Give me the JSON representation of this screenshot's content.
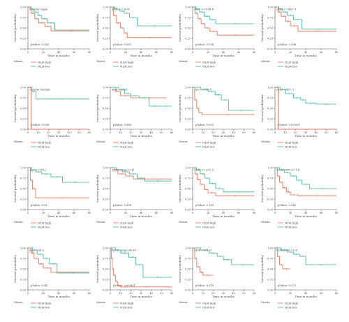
{
  "colors": {
    "high": "#e8664a",
    "low": "#33b39a",
    "axis": "#555555",
    "text": "#444444"
  },
  "shared": {
    "ylabel": "Survival probability",
    "xlabel": "Time in months",
    "yticks": [
      "0.00",
      "0.25",
      "0.50",
      "0.75",
      "1.00"
    ],
    "legend_title": "Strata",
    "legend_high": "NLR-high",
    "legend_low": "NLR-low"
  },
  "chart_data": [
    {
      "type": "line",
      "title": "Gender male",
      "pvalue": "pValue: 0.043",
      "xlim": [
        0,
        80
      ],
      "xticks": [
        0,
        20,
        40,
        60,
        80
      ],
      "ylim": [
        0,
        1
      ],
      "series": [
        {
          "name": "NLR-high",
          "x": [
            0,
            4,
            9,
            14,
            22,
            30,
            80
          ],
          "y": [
            1,
            0.85,
            0.72,
            0.62,
            0.54,
            0.43,
            0.43
          ]
        },
        {
          "name": "NLR-low",
          "x": [
            0,
            3,
            8,
            13,
            18,
            25,
            35,
            80
          ],
          "y": [
            1,
            0.95,
            0.88,
            0.8,
            0.72,
            0.62,
            0.45,
            0.45
          ]
        }
      ]
    },
    {
      "type": "line",
      "title": "BMI <=20.8",
      "pvalue": "pValue: 0.007",
      "xlim": [
        0,
        80
      ],
      "xticks": [
        0,
        20,
        40,
        60,
        80
      ],
      "ylim": [
        0,
        1
      ],
      "series": [
        {
          "name": "NLR-high",
          "x": [
            0,
            4,
            8,
            13,
            18,
            22,
            80
          ],
          "y": [
            1,
            0.8,
            0.62,
            0.5,
            0.38,
            0.27,
            0.27
          ]
        },
        {
          "name": "NLR-low",
          "x": [
            0,
            6,
            12,
            18,
            25,
            35,
            80
          ],
          "y": [
            1,
            0.95,
            0.9,
            0.85,
            0.75,
            0.55,
            0.55
          ]
        }
      ]
    },
    {
      "type": "line",
      "title": "CD3 <=598.8",
      "pvalue": "pValue: 0.078",
      "xlim": [
        0,
        80
      ],
      "xticks": [
        0,
        20,
        40,
        60,
        80
      ],
      "ylim": [
        0,
        1
      ],
      "series": [
        {
          "name": "NLR-high",
          "x": [
            0,
            3,
            7,
            11,
            16,
            22,
            32,
            80
          ],
          "y": [
            1,
            0.85,
            0.72,
            0.6,
            0.5,
            0.42,
            0.33,
            0.33
          ]
        },
        {
          "name": "NLR-low",
          "x": [
            0,
            4,
            9,
            15,
            22,
            30,
            80
          ],
          "y": [
            1,
            0.95,
            0.88,
            0.78,
            0.7,
            0.6,
            0.6
          ]
        }
      ]
    },
    {
      "type": "line",
      "title": "CD8 <=467.3",
      "pvalue": "pValue: 0.196",
      "xlim": [
        0,
        80
      ],
      "xticks": [
        0,
        20,
        40,
        60,
        80
      ],
      "ylim": [
        0,
        1
      ],
      "series": [
        {
          "name": "NLR-high",
          "x": [
            0,
            4,
            8,
            14,
            20,
            30,
            80
          ],
          "y": [
            1,
            0.88,
            0.78,
            0.66,
            0.55,
            0.42,
            0.42
          ]
        },
        {
          "name": "NLR-low",
          "x": [
            0,
            5,
            10,
            16,
            24,
            35,
            80
          ],
          "y": [
            1,
            0.95,
            0.88,
            0.8,
            0.7,
            0.47,
            0.47
          ]
        }
      ]
    },
    {
      "type": "line",
      "title": "Gender female",
      "pvalue": "pValue: 0.008",
      "xlim": [
        0,
        60
      ],
      "xticks": [
        0,
        10,
        20,
        30,
        40,
        50,
        60
      ],
      "ylim": [
        0,
        1
      ],
      "series": [
        {
          "name": "NLR-high",
          "x": [
            0,
            2,
            3,
            60
          ],
          "y": [
            1,
            1,
            0,
            0
          ]
        },
        {
          "name": "NLR-low",
          "x": [
            0,
            4,
            8,
            60
          ],
          "y": [
            1,
            0.9,
            0.72,
            0.72
          ]
        }
      ]
    },
    {
      "type": "line",
      "title": "BMI >20.8",
      "pvalue": "pValue: 0.885",
      "xlim": [
        0,
        60
      ],
      "xticks": [
        0,
        10,
        20,
        30,
        40,
        50,
        60
      ],
      "ylim": [
        0,
        1
      ],
      "series": [
        {
          "name": "NLR-high",
          "x": [
            0,
            5,
            10,
            20,
            55
          ],
          "y": [
            1,
            0.9,
            0.8,
            0.75,
            0.75
          ]
        },
        {
          "name": "NLR-low",
          "x": [
            0,
            8,
            14,
            20,
            28,
            38,
            50,
            60
          ],
          "y": [
            1,
            0.95,
            0.85,
            0.8,
            0.75,
            0.55,
            0.55,
            0.55
          ]
        }
      ]
    },
    {
      "type": "line",
      "title": "CD3 >598.8",
      "pvalue": "pValue: 0.031",
      "xlim": [
        0,
        60
      ],
      "xticks": [
        0,
        10,
        20,
        30,
        40,
        50,
        60
      ],
      "ylim": [
        0,
        1
      ],
      "series": [
        {
          "name": "NLR-high",
          "x": [
            0,
            2,
            4,
            6,
            9,
            60
          ],
          "y": [
            1,
            0.7,
            0.5,
            0.4,
            0.35,
            0.35
          ]
        },
        {
          "name": "NLR-low",
          "x": [
            0,
            8,
            15,
            22,
            28,
            35,
            60
          ],
          "y": [
            1,
            0.95,
            0.9,
            0.82,
            0.7,
            0.45,
            0.45
          ]
        }
      ]
    },
    {
      "type": "line",
      "title": "CD8 >467.3",
      "pvalue": "pValue: <0.0001",
      "xlim": [
        0,
        60
      ],
      "xticks": [
        0,
        10,
        20,
        30,
        40,
        50,
        60
      ],
      "ylim": [
        0,
        1
      ],
      "series": [
        {
          "name": "NLR-high",
          "x": [
            0,
            2,
            3,
            60
          ],
          "y": [
            1,
            1,
            0,
            0
          ]
        },
        {
          "name": "NLR-low",
          "x": [
            0,
            5,
            10,
            18,
            25,
            30,
            40,
            60
          ],
          "y": [
            1,
            0.95,
            0.85,
            0.75,
            0.7,
            0.62,
            0.6,
            0.6
          ]
        }
      ]
    },
    {
      "type": "line",
      "title": "Age <=58.2",
      "pvalue": "pValue: 0.01",
      "xlim": [
        0,
        80
      ],
      "xticks": [
        0,
        20,
        40,
        60,
        80
      ],
      "ylim": [
        0,
        1
      ],
      "series": [
        {
          "name": "NLR-high",
          "x": [
            0,
            3,
            6,
            10,
            80
          ],
          "y": [
            1,
            0.7,
            0.5,
            0.28,
            0.28
          ]
        },
        {
          "name": "NLR-low",
          "x": [
            0,
            5,
            10,
            18,
            30,
            45,
            80
          ],
          "y": [
            1,
            0.95,
            0.9,
            0.85,
            0.78,
            0.65,
            0.65
          ]
        }
      ]
    },
    {
      "type": "line",
      "title": "AJCC stage 0–II",
      "pvalue": "pValue: 0.499",
      "xlim": [
        0,
        80
      ],
      "xticks": [
        0,
        20,
        40,
        60,
        80
      ],
      "ylim": [
        0,
        1
      ],
      "series": [
        {
          "name": "NLR-high",
          "x": [
            0,
            5,
            10,
            20,
            30,
            80
          ],
          "y": [
            1,
            0.95,
            0.85,
            0.8,
            0.73,
            0.73
          ]
        },
        {
          "name": "NLR-low",
          "x": [
            0,
            8,
            16,
            25,
            35,
            45,
            80
          ],
          "y": [
            1,
            0.95,
            0.9,
            0.85,
            0.75,
            0.68,
            0.68
          ]
        }
      ]
    },
    {
      "type": "line",
      "title": "CD4 <=291.3",
      "pvalue": "pValue: 0.163",
      "xlim": [
        0,
        80
      ],
      "xticks": [
        0,
        20,
        40,
        60,
        80
      ],
      "ylim": [
        0,
        1
      ],
      "series": [
        {
          "name": "NLR-high",
          "x": [
            0,
            3,
            6,
            10,
            15,
            20,
            30,
            80
          ],
          "y": [
            1,
            0.85,
            0.72,
            0.6,
            0.48,
            0.4,
            0.33,
            0.33
          ]
        },
        {
          "name": "NLR-low",
          "x": [
            0,
            5,
            10,
            16,
            22,
            30,
            40,
            80
          ],
          "y": [
            1,
            0.95,
            0.85,
            0.75,
            0.62,
            0.5,
            0.42,
            0.42
          ]
        }
      ]
    },
    {
      "type": "line",
      "title": "CD4/CD8 <=1.6",
      "pvalue": "pValue: 0.042",
      "xlim": [
        0,
        80
      ],
      "xticks": [
        0,
        20,
        40,
        60,
        80
      ],
      "ylim": [
        0,
        1
      ],
      "series": [
        {
          "name": "NLR-high",
          "x": [
            0,
            3,
            6,
            10,
            15,
            20,
            30,
            80
          ],
          "y": [
            1,
            0.8,
            0.65,
            0.52,
            0.42,
            0.35,
            0.33,
            0.33
          ]
        },
        {
          "name": "NLR-low",
          "x": [
            0,
            6,
            12,
            20,
            28,
            35,
            45,
            80
          ],
          "y": [
            1,
            0.95,
            0.88,
            0.8,
            0.7,
            0.6,
            0.5,
            0.5
          ]
        }
      ]
    },
    {
      "type": "line",
      "title": "Age >58.2",
      "pvalue": "pValue: 0.44",
      "xlim": [
        0,
        80
      ],
      "xticks": [
        0,
        20,
        40,
        60,
        80
      ],
      "ylim": [
        0,
        1
      ],
      "series": [
        {
          "name": "NLR-high",
          "x": [
            0,
            4,
            8,
            14,
            20,
            30,
            80
          ],
          "y": [
            1,
            0.88,
            0.75,
            0.62,
            0.52,
            0.42,
            0.42
          ]
        },
        {
          "name": "NLR-low",
          "x": [
            0,
            6,
            12,
            20,
            28,
            38,
            80
          ],
          "y": [
            1,
            0.95,
            0.85,
            0.75,
            0.62,
            0.4,
            0.4
          ]
        }
      ]
    },
    {
      "type": "line",
      "title": "AJCC stage III–IV",
      "pvalue": "pValue: <0.0001",
      "xlim": [
        0,
        60
      ],
      "xticks": [
        0,
        10,
        20,
        30,
        40,
        50,
        60
      ],
      "ylim": [
        0,
        1
      ],
      "series": [
        {
          "name": "NLR-high",
          "x": [
            0,
            1,
            2,
            3,
            5,
            7,
            10,
            60
          ],
          "y": [
            1,
            0.75,
            0.5,
            0.35,
            0.2,
            0.1,
            0.07,
            0.07
          ]
        },
        {
          "name": "NLR-low",
          "x": [
            0,
            5,
            10,
            18,
            25,
            32,
            60
          ],
          "y": [
            1,
            0.95,
            0.88,
            0.78,
            0.6,
            0.3,
            0.3
          ]
        }
      ]
    },
    {
      "type": "line",
      "title": "CD4 >291.3",
      "pvalue": "pValue: 0.019",
      "xlim": [
        0,
        60
      ],
      "xticks": [
        0,
        10,
        20,
        30,
        40,
        50,
        60
      ],
      "ylim": [
        0,
        1
      ],
      "series": [
        {
          "name": "NLR-high",
          "x": [
            0,
            2,
            4,
            7,
            10,
            20
          ],
          "y": [
            1,
            0.75,
            0.55,
            0.42,
            0.35,
            0.35
          ]
        },
        {
          "name": "NLR-low",
          "x": [
            0,
            8,
            16,
            24,
            30,
            38,
            60
          ],
          "y": [
            1,
            0.95,
            0.88,
            0.8,
            0.72,
            0.6,
            0.6
          ]
        }
      ]
    },
    {
      "type": "line",
      "title": "CD4/CD8 >1.6",
      "pvalue": "pValue: 0.072",
      "xlim": [
        0,
        80
      ],
      "xticks": [
        0,
        20,
        40,
        60,
        80
      ],
      "ylim": [
        0,
        1
      ],
      "series": [
        {
          "name": "NLR-high",
          "x": [
            0,
            3,
            6,
            10,
            20
          ],
          "y": [
            1,
            0.8,
            0.6,
            0.5,
            0.5
          ]
        },
        {
          "name": "NLR-low",
          "x": [
            0,
            8,
            16,
            24,
            32,
            40,
            80
          ],
          "y": [
            1,
            0.95,
            0.9,
            0.85,
            0.8,
            0.6,
            0.6
          ]
        }
      ]
    }
  ]
}
